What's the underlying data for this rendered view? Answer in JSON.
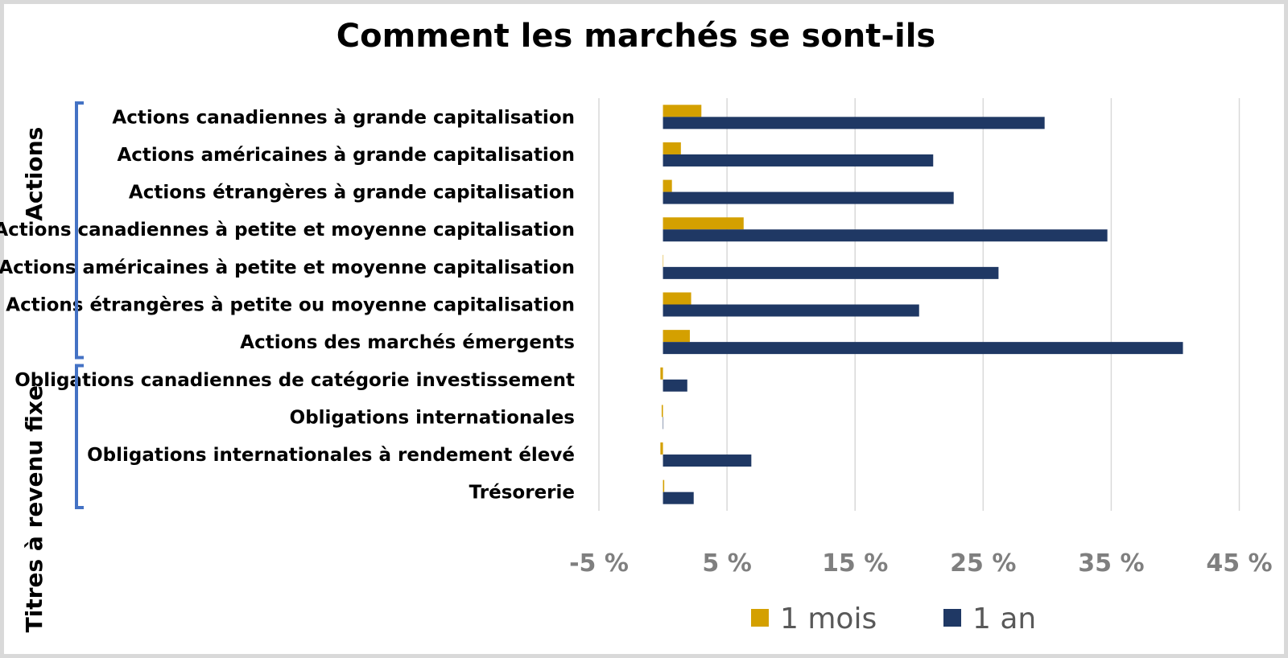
{
  "chart_data": {
    "type": "bar",
    "orientation": "horizontal",
    "title": "Comment les marchés se sont-ils",
    "xlabel": "",
    "ylabel": "",
    "xlim": [
      -5,
      47
    ],
    "xticks": [
      -5,
      5,
      15,
      25,
      35,
      45
    ],
    "xtick_labels": [
      "-5 %",
      "5 %",
      "15 %",
      "25 %",
      "35 %",
      "45 %"
    ],
    "grid": "vertical",
    "legend_position": "bottom",
    "categories": [
      "Actions canadiennes à grande capitalisation",
      "Actions américaines à grande capitalisation",
      "Actions étrangères à grande capitalisation",
      "Actions canadiennes à petite et moyenne capitalisation",
      "Actions américaines à petite et moyenne capitalisation",
      "Actions étrangères à petite ou moyenne capitalisation",
      "Actions des marchés émergents",
      "Obligations canadiennes de catégorie investissement",
      "Obligations internationales",
      "Obligations internationales à rendement élevé",
      "Trésorerie"
    ],
    "series": [
      {
        "name": "1 mois",
        "color": "#d4a000",
        "values": [
          3.0,
          1.4,
          0.7,
          6.3,
          0.0,
          2.2,
          2.1,
          -0.2,
          -0.1,
          -0.2,
          0.1
        ]
      },
      {
        "name": "1 an",
        "color": "#1f3864",
        "values": [
          29.8,
          21.1,
          22.7,
          34.7,
          26.2,
          20.0,
          40.6,
          1.9,
          0.0,
          6.9,
          2.4
        ]
      }
    ],
    "groups": [
      {
        "label": "Actions",
        "from": 0,
        "to": 6
      },
      {
        "label": "Titres à revenu fixe",
        "from": 7,
        "to": 10
      }
    ],
    "bracket_color": "#4472c4",
    "grid_color": "#d9d9d9"
  }
}
